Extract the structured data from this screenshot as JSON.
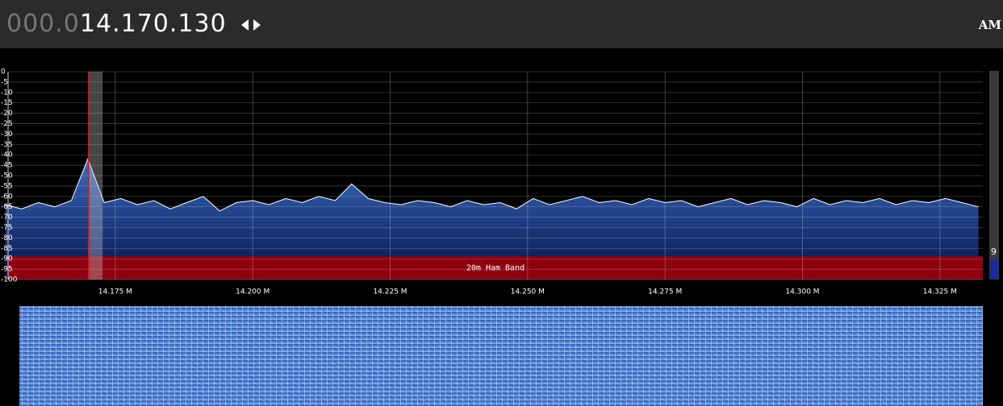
{
  "header": {
    "frequency_prefix": "000.0",
    "frequency": "14.170.130",
    "mode": "AM"
  },
  "chart_data": {
    "type": "line",
    "x": [
      14.155,
      14.158,
      14.161,
      14.164,
      14.167,
      14.17,
      14.173,
      14.176,
      14.179,
      14.182,
      14.185,
      14.188,
      14.191,
      14.194,
      14.197,
      14.2,
      14.203,
      14.206,
      14.209,
      14.212,
      14.215,
      14.218,
      14.221,
      14.224,
      14.227,
      14.23,
      14.233,
      14.236,
      14.239,
      14.242,
      14.245,
      14.248,
      14.251,
      14.254,
      14.257,
      14.26,
      14.263,
      14.266,
      14.269,
      14.272,
      14.275,
      14.278,
      14.281,
      14.284,
      14.287,
      14.29,
      14.293,
      14.296,
      14.299,
      14.302,
      14.305,
      14.308,
      14.311,
      14.314,
      14.317,
      14.32,
      14.323,
      14.326,
      14.329,
      14.332
    ],
    "values": [
      -64,
      -66,
      -63,
      -65,
      -62,
      -42,
      -63,
      -61,
      -64,
      -62,
      -66,
      -63,
      -60,
      -67,
      -63,
      -62,
      -64,
      -61,
      -63,
      -60,
      -62,
      -54,
      -61,
      -63,
      -64,
      -62,
      -63,
      -65,
      -62,
      -64,
      -63,
      -66,
      -61,
      -64,
      -62,
      -60,
      -63,
      -62,
      -64,
      -61,
      -63,
      -62,
      -65,
      -63,
      -61,
      -64,
      -62,
      -63,
      -65,
      -61,
      -64,
      -62,
      -63,
      -61,
      -64,
      -62,
      -63,
      -61,
      -63,
      -65
    ],
    "color": "#ffffff",
    "xlim": [
      14.1555,
      14.3328
    ],
    "xticks": [
      {
        "value": 14.175,
        "label": "14.175 M"
      },
      {
        "value": 14.2,
        "label": "14.200 M"
      },
      {
        "value": 14.225,
        "label": "14.225 M"
      },
      {
        "value": 14.25,
        "label": "14.250 M"
      },
      {
        "value": 14.275,
        "label": "14.275 M"
      },
      {
        "value": 14.3,
        "label": "14.300 M"
      },
      {
        "value": 14.325,
        "label": "14.325 M"
      }
    ],
    "ylim": [
      -100,
      0
    ],
    "yticks": [
      0,
      -5,
      -10,
      -15,
      -20,
      -25,
      -30,
      -35,
      -40,
      -45,
      -50,
      -55,
      -60,
      -65,
      -70,
      -75,
      -80,
      -85,
      -90,
      -95,
      -100
    ],
    "grid": true,
    "band_label": "20m Ham Band",
    "tuned_frequency": 14.17013,
    "passband": [
      14.17013,
      14.1727
    ],
    "meter_label": "9"
  }
}
